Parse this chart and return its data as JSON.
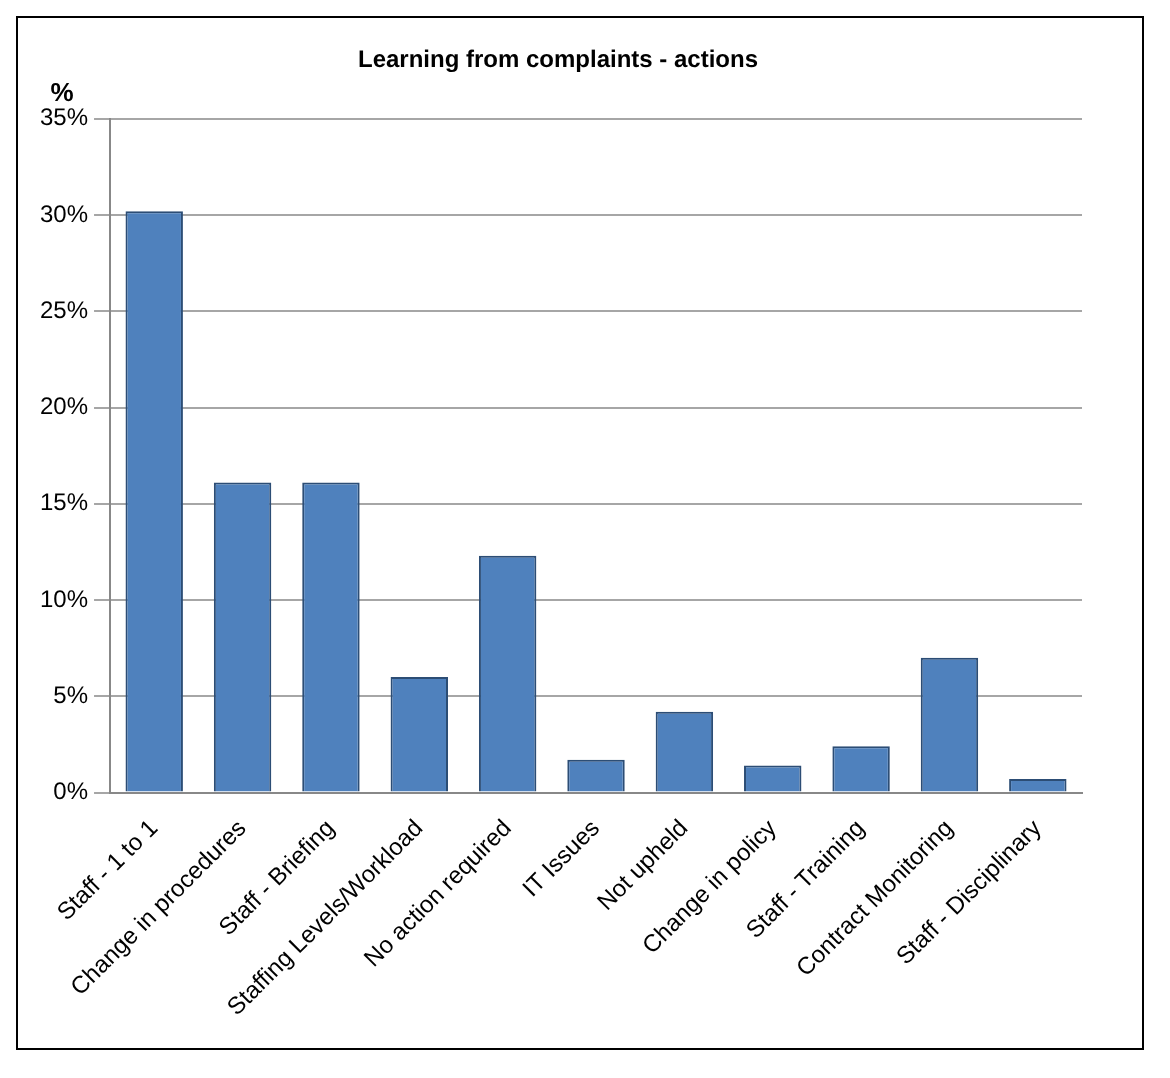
{
  "chart_data": {
    "type": "bar",
    "title": "Learning from complaints - actions",
    "ylabel": "%",
    "categories": [
      "Staff - 1 to 1",
      "Change in procedures",
      "Staff - Briefing",
      "Staffing Levels/Workload",
      "No action required",
      "IT Issues",
      "Not upheld",
      "Change in policy",
      "Staff - Training",
      "Contract Monitoring",
      "Staff - Disciplinary"
    ],
    "values": [
      30.2,
      16.1,
      16.1,
      6.0,
      12.3,
      1.7,
      4.2,
      1.4,
      2.4,
      7.0,
      0.7
    ],
    "color": "#4f81bd",
    "ylim": [
      0,
      35
    ],
    "yticks": [
      {
        "value": 0,
        "label": "0%"
      },
      {
        "value": 5,
        "label": "5%"
      },
      {
        "value": 10,
        "label": "10%"
      },
      {
        "value": 15,
        "label": "15%"
      },
      {
        "value": 20,
        "label": "20%"
      },
      {
        "value": 25,
        "label": "25%"
      },
      {
        "value": 30,
        "label": "30%"
      },
      {
        "value": 35,
        "label": "35%"
      }
    ],
    "grid": "y",
    "legend": false
  }
}
